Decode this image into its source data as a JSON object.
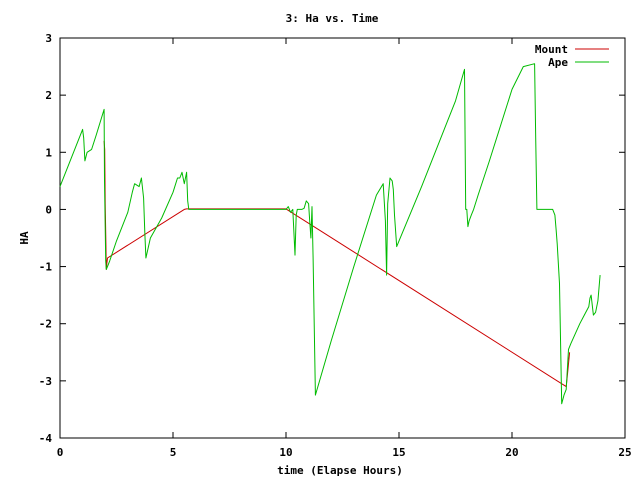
{
  "chart_data": {
    "type": "line",
    "title": "3: Ha vs. Time",
    "xlabel": "time (Elapse Hours)",
    "ylabel": "HA",
    "xlim": [
      0,
      25
    ],
    "ylim": [
      -4,
      3
    ],
    "x_ticks": [
      "0",
      "5",
      "10",
      "15",
      "20",
      "25"
    ],
    "y_ticks": [
      "3",
      "2",
      "1",
      "0",
      "-1",
      "-2",
      "-3",
      "-4"
    ],
    "grid": false,
    "legend_position": "top-right",
    "series": [
      {
        "name": "Mount",
        "color": "#cc0000",
        "x": [
          1.95,
          1.98,
          2.0,
          2.03,
          2.05,
          2.07,
          2.1,
          5.5,
          5.6,
          10.0,
          22.4,
          22.45,
          22.5,
          22.55
        ],
        "y": [
          1.2,
          1.05,
          0.1,
          -0.6,
          -1.05,
          -0.95,
          -0.85,
          0.0,
          0.01,
          0.01,
          -3.1,
          -2.9,
          -2.7,
          -2.5
        ]
      },
      {
        "name": "Ape",
        "color": "#00bb00",
        "x": [
          0.0,
          1.0,
          1.05,
          1.1,
          1.2,
          1.4,
          1.6,
          1.95,
          1.97,
          2.0,
          2.02,
          2.05,
          2.1,
          2.2,
          2.5,
          2.8,
          3.0,
          3.2,
          3.3,
          3.5,
          3.6,
          3.7,
          3.75,
          3.8,
          4.0,
          4.5,
          5.0,
          5.2,
          5.3,
          5.4,
          5.5,
          5.6,
          5.65,
          5.7,
          6.0,
          8.0,
          10.0,
          10.1,
          10.2,
          10.3,
          10.35,
          10.4,
          10.45,
          10.5,
          10.6,
          10.7,
          10.8,
          10.9,
          11.0,
          11.05,
          11.1,
          11.15,
          11.2,
          11.3,
          12.0,
          13.0,
          14.0,
          14.3,
          14.4,
          14.45,
          14.5,
          14.6,
          14.7,
          14.75,
          14.8,
          14.9,
          15.0,
          16.0,
          17.0,
          17.5,
          17.9,
          17.95,
          18.0,
          18.05,
          18.1,
          18.2,
          18.3,
          18.5,
          19.0,
          20.0,
          20.5,
          21.0,
          21.05,
          21.1,
          21.2,
          21.5,
          21.8,
          21.9,
          21.95,
          22.0,
          22.1,
          22.2,
          22.3,
          22.4,
          22.5,
          22.6,
          23.0,
          23.2,
          23.4,
          23.45,
          23.5,
          23.6,
          23.7,
          23.8,
          23.9
        ],
        "y": [
          0.4,
          1.4,
          1.25,
          0.85,
          1.0,
          1.05,
          1.3,
          1.75,
          0.5,
          -0.3,
          -0.9,
          -1.05,
          -1.0,
          -0.9,
          -0.55,
          -0.25,
          -0.05,
          0.3,
          0.45,
          0.4,
          0.55,
          0.2,
          -0.4,
          -0.85,
          -0.5,
          -0.15,
          0.3,
          0.55,
          0.55,
          0.65,
          0.45,
          0.65,
          0.15,
          0.0,
          0.0,
          0.0,
          0.0,
          0.05,
          -0.05,
          0.0,
          -0.4,
          -0.8,
          -0.1,
          0.0,
          0.0,
          0.0,
          0.02,
          0.15,
          0.1,
          -0.2,
          -0.5,
          0.05,
          -0.85,
          -3.25,
          -2.3,
          -1.0,
          0.25,
          0.45,
          -0.2,
          -1.15,
          0.1,
          0.55,
          0.5,
          0.35,
          -0.1,
          -0.65,
          -0.55,
          0.4,
          1.4,
          1.9,
          2.45,
          0.0,
          0.0,
          -0.3,
          -0.2,
          -0.1,
          0.0,
          0.25,
          0.85,
          2.1,
          2.5,
          2.55,
          1.25,
          0.0,
          0.0,
          0.0,
          0.0,
          -0.1,
          -0.35,
          -0.6,
          -1.3,
          -3.4,
          -3.25,
          -3.15,
          -2.45,
          -2.35,
          -2.0,
          -1.85,
          -1.7,
          -1.55,
          -1.5,
          -1.85,
          -1.8,
          -1.6,
          -1.15
        ]
      }
    ]
  }
}
